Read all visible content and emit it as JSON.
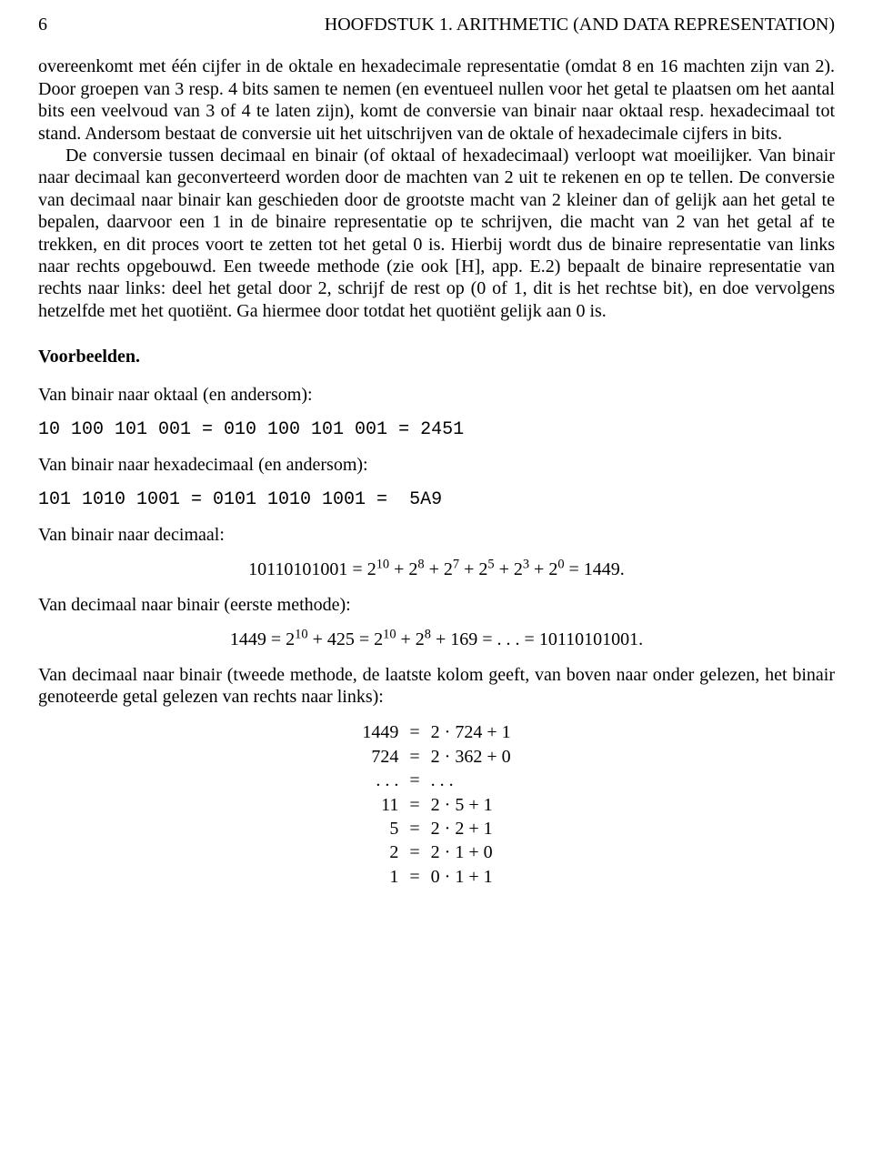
{
  "header": {
    "page_number": "6",
    "chapter_title": "HOOFDSTUK 1.  ARITHMETIC (AND DATA REPRESENTATION)"
  },
  "para1": "overeenkomt met één cijfer in de oktale en hexadecimale representatie (omdat 8 en 16 machten zijn van 2). Door groepen van 3 resp. 4 bits samen te nemen (en eventueel nullen voor het getal te plaatsen om het aantal bits een veelvoud van 3 of 4 te laten zijn), komt de conversie van binair naar oktaal resp. hexadecimaal tot stand. Andersom bestaat de conversie uit het uitschrijven van de oktale of hexadecimale cijfers in bits.",
  "para2": "De conversie tussen decimaal en binair (of oktaal of hexadecimaal) verloopt wat moeilijker. Van binair naar decimaal kan geconverteerd worden door de machten van 2 uit te rekenen en op te tellen. De conversie van decimaal naar binair kan geschieden door de grootste macht van 2 kleiner dan of gelijk aan het getal te bepalen, daarvoor een 1 in de binaire representatie op te schrijven, die macht van 2 van het getal af te trekken, en dit proces voort te zetten tot het getal 0 is. Hierbij wordt dus de binaire representatie van links naar rechts opgebouwd. Een tweede methode (zie ook [H], app. E.2) bepaalt de binaire representatie van rechts naar links: deel het getal door 2, schrijf de rest op (0 of 1, dit is het rechtse bit), en doe vervolgens hetzelfde met het quotiënt. Ga hiermee door totdat het quotiënt gelijk aan 0 is.",
  "sections": {
    "voorbeelden": "Voorbeelden.",
    "bin_oct": "Van binair naar oktaal (en andersom):",
    "bin_oct_code": "10 100 101 001 = 010 100 101 001 = 2451",
    "bin_hex": "Van binair naar hexadecimaal (en andersom):",
    "bin_hex_code": "101 1010 1001 = 0101 1010 1001 =  5A9",
    "bin_dec": "Van binair naar decimaal:",
    "dec_bin1": "Van decimaal naar binair (eerste methode):",
    "dec_bin2": "Van decimaal naar binair (tweede methode, de laatste kolom geeft, van boven naar onder gelezen, het binair genoteerde getal gelezen van rechts naar links):"
  },
  "math": {
    "bin_dec_lhs": "10110101001 = 2",
    "bin_dec_exps": [
      "10",
      "8",
      "7",
      "5",
      "3",
      "0"
    ],
    "bin_dec_rhs": " = 1449.",
    "dec_bin1_text_a": "1449 = 2",
    "dec_bin1_exp_a": "10",
    "dec_bin1_text_b": " + 425 = 2",
    "dec_bin1_exp_b": "10",
    "dec_bin1_text_c": " + 2",
    "dec_bin1_exp_c": "8",
    "dec_bin1_text_d": " + 169 = . . . = 10110101001."
  },
  "eqns": [
    {
      "lhs": "1449",
      "rhs": "2 · 724 + 1"
    },
    {
      "lhs": "724",
      "rhs": "2 · 362 + 0"
    },
    {
      "lhs": ". . .",
      "rhs": ". . ."
    },
    {
      "lhs": "11",
      "rhs": "2 · 5 + 1"
    },
    {
      "lhs": "5",
      "rhs": "2 · 2 + 1"
    },
    {
      "lhs": "2",
      "rhs": "2 · 1 + 0"
    },
    {
      "lhs": "1",
      "rhs": "0 · 1 + 1"
    }
  ],
  "eq_sign": "="
}
